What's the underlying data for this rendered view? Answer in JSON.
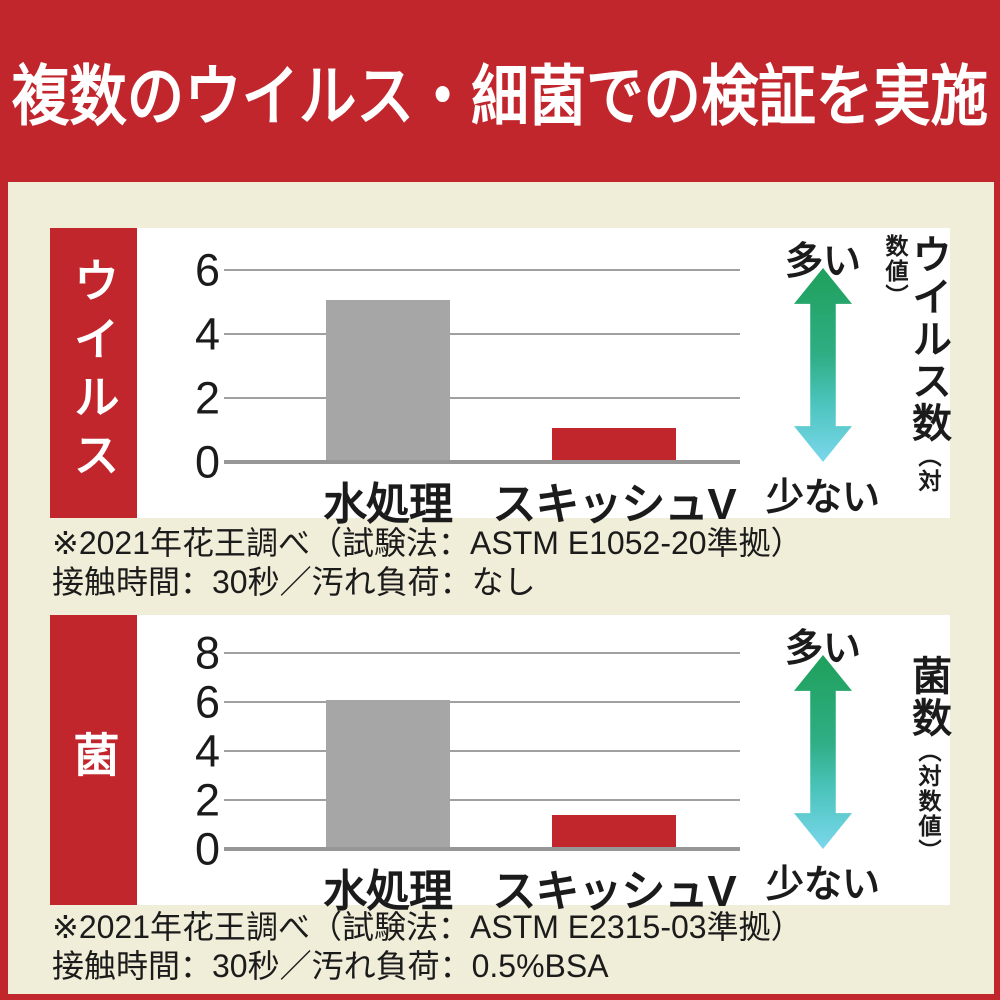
{
  "header": {
    "title": "複数のウイルス・細菌での検証を実施"
  },
  "colors": {
    "accent_red": "#c2262d",
    "background_cream": "#f0edd8",
    "bar_gray": "#a6a6a6",
    "gridline_gray": "#a0a0a0",
    "arrow_gradient_top": "#1fa05a",
    "arrow_gradient_bottom": "#7bd7ec",
    "text_black": "#1b1b1b"
  },
  "chart_data": [
    {
      "type": "bar",
      "row_label": "ウイルス",
      "categories": [
        "水処理",
        "スキッシュV"
      ],
      "values": [
        5.0,
        1.0
      ],
      "bar_colors": [
        "#a6a6a6",
        "#c2262d"
      ],
      "yticks": [
        0,
        2,
        4,
        6
      ],
      "ylim": [
        0,
        7.2
      ],
      "grid": true,
      "ylabel": "ウイルス数",
      "ylabel_sub": "（対数値）",
      "legend_more": "多い",
      "legend_less": "少ない",
      "legend_position": "right"
    },
    {
      "type": "bar",
      "row_label": "菌",
      "categories": [
        "水処理",
        "スキッシュV"
      ],
      "values": [
        6.0,
        1.3
      ],
      "bar_colors": [
        "#a6a6a6",
        "#c2262d"
      ],
      "yticks": [
        0,
        2,
        4,
        6,
        8
      ],
      "ylim": [
        0,
        9.4
      ],
      "grid": true,
      "ylabel": "菌数",
      "ylabel_sub": "（対数値）",
      "legend_more": "多い",
      "legend_less": "少ない",
      "legend_position": "right"
    }
  ],
  "footnotes": [
    {
      "line1": "※2021年花王調べ（試験法：ASTM E1052-20準拠）",
      "line2": "接触時間：30秒／汚れ負荷：なし"
    },
    {
      "line1": "※2021年花王調べ（試験法：ASTM E2315-03準拠）",
      "line2": "接触時間：30秒／汚れ負荷：0.5%BSA"
    }
  ]
}
